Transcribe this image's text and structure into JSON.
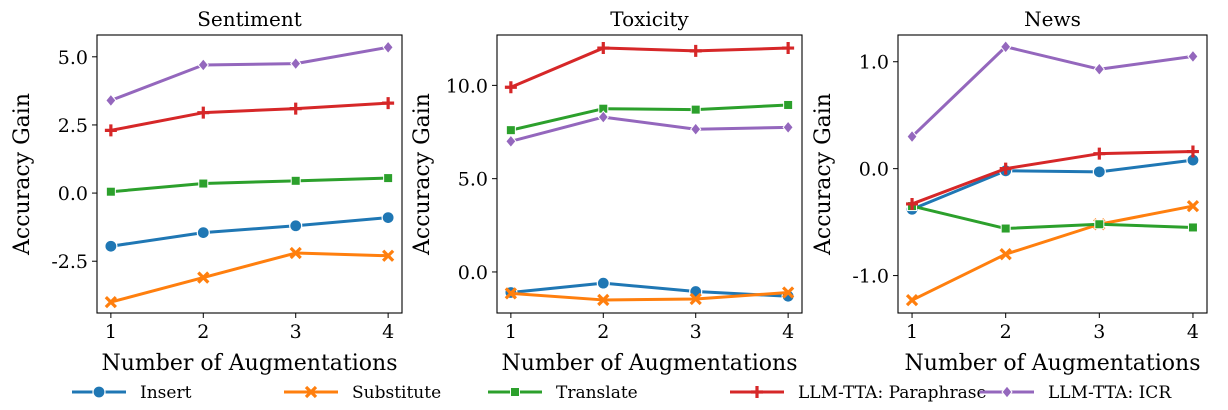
{
  "legend": {
    "placement": "bottom",
    "entries": [
      {
        "name": "Insert",
        "color": "#1f77b4",
        "marker": "circle"
      },
      {
        "name": "Substitute",
        "color": "#ff7f0e",
        "marker": "x"
      },
      {
        "name": "Translate",
        "color": "#2ca02c",
        "marker": "square"
      },
      {
        "name": "LLM-TTA: Paraphrase",
        "color": "#d62728",
        "marker": "plus"
      },
      {
        "name": "LLM-TTA: ICR",
        "color": "#9467bd",
        "marker": "diamond"
      }
    ]
  },
  "chart_data": [
    {
      "type": "line",
      "title": "Sentiment",
      "xlabel": "Number of Augmentations",
      "ylabel": "Accuracy Gain",
      "x": [
        1,
        2,
        3,
        4
      ],
      "xlim": [
        0.85,
        4.15
      ],
      "ylim": [
        -4.4,
        5.8
      ],
      "yticks": [
        -2.5,
        0.0,
        2.5,
        5.0
      ],
      "ytick_labels": [
        "-2.5",
        "0.0",
        "2.5",
        "5.0"
      ],
      "grid": false,
      "series": [
        {
          "name": "Insert",
          "values": [
            -1.95,
            -1.45,
            -1.2,
            -0.9
          ]
        },
        {
          "name": "Substitute",
          "values": [
            -4.0,
            -3.1,
            -2.2,
            -2.3
          ]
        },
        {
          "name": "Translate",
          "values": [
            0.05,
            0.35,
            0.45,
            0.55
          ]
        },
        {
          "name": "LLM-TTA: Paraphrase",
          "values": [
            2.3,
            2.95,
            3.1,
            3.3
          ]
        },
        {
          "name": "LLM-TTA: ICR",
          "values": [
            3.4,
            4.7,
            4.75,
            5.35
          ]
        }
      ]
    },
    {
      "type": "line",
      "title": "Toxicity",
      "xlabel": "Number of Augmentations",
      "ylabel": "Accuracy Gain",
      "x": [
        1,
        2,
        3,
        4
      ],
      "xlim": [
        0.85,
        4.15
      ],
      "ylim": [
        -2.2,
        12.7
      ],
      "yticks": [
        0.0,
        5.0,
        10.0
      ],
      "ytick_labels": [
        "0.0",
        "5.0",
        "10.0"
      ],
      "grid": false,
      "series": [
        {
          "name": "Insert",
          "values": [
            -1.1,
            -0.6,
            -1.05,
            -1.3
          ]
        },
        {
          "name": "Substitute",
          "values": [
            -1.15,
            -1.5,
            -1.45,
            -1.1
          ]
        },
        {
          "name": "Translate",
          "values": [
            7.6,
            8.75,
            8.7,
            8.95
          ]
        },
        {
          "name": "LLM-TTA: Paraphrase",
          "values": [
            9.9,
            12.0,
            11.85,
            12.0
          ]
        },
        {
          "name": "LLM-TTA: ICR",
          "values": [
            7.0,
            8.3,
            7.65,
            7.75
          ]
        }
      ]
    },
    {
      "type": "line",
      "title": "News",
      "xlabel": "Number of Augmentations",
      "ylabel": "Accuracy Gain",
      "x": [
        1,
        2,
        3,
        4
      ],
      "xlim": [
        0.85,
        4.15
      ],
      "ylim": [
        -1.35,
        1.25
      ],
      "yticks": [
        -1.0,
        0.0,
        1.0
      ],
      "ytick_labels": [
        "-1.0",
        "0.0",
        "1.0"
      ],
      "grid": false,
      "series": [
        {
          "name": "Insert",
          "values": [
            -0.38,
            -0.02,
            -0.03,
            0.08
          ]
        },
        {
          "name": "Substitute",
          "values": [
            -1.23,
            -0.8,
            -0.52,
            -0.35
          ]
        },
        {
          "name": "Translate",
          "values": [
            -0.35,
            -0.56,
            -0.52,
            -0.55
          ]
        },
        {
          "name": "LLM-TTA: Paraphrase",
          "values": [
            -0.33,
            0.0,
            0.14,
            0.16
          ]
        },
        {
          "name": "LLM-TTA: ICR",
          "values": [
            0.3,
            1.14,
            0.93,
            1.05
          ]
        }
      ]
    }
  ]
}
